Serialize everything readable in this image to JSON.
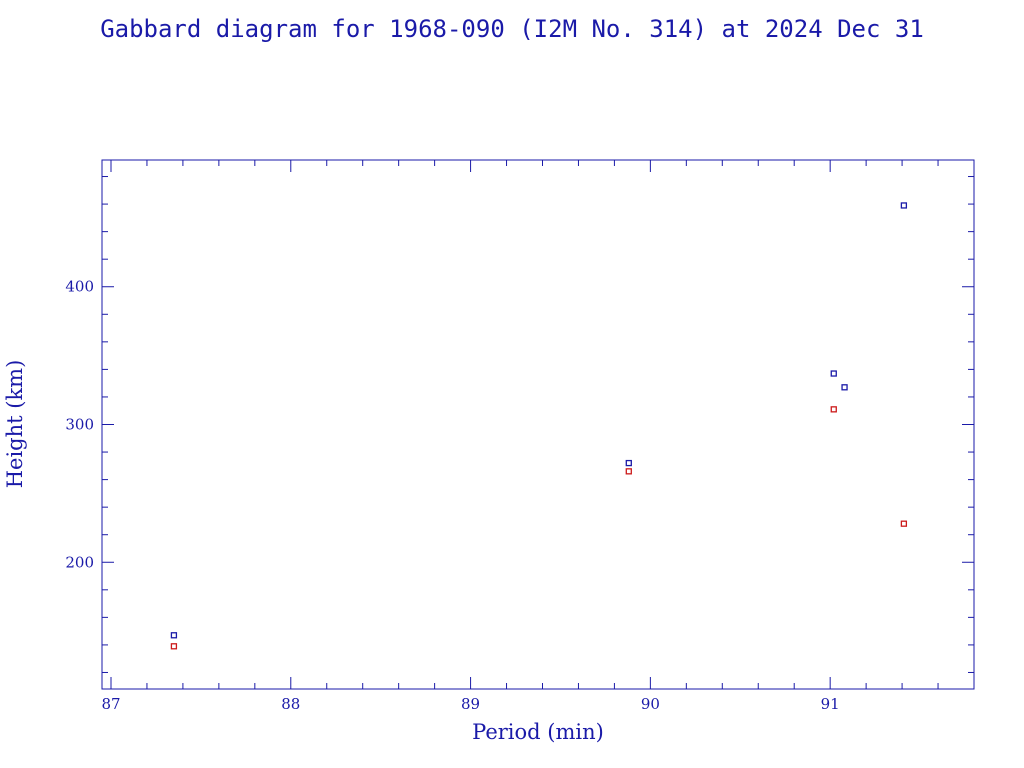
{
  "chart_data": {
    "type": "scatter",
    "title": "Gabbard diagram for 1968-090 (I2M No. 314) at 2024 Dec 31",
    "xlabel": "Period (min)",
    "ylabel": "Height (km)",
    "xlim": [
      86.95,
      91.8
    ],
    "ylim": [
      108,
      492
    ],
    "x_ticks": [
      87,
      88,
      89,
      90,
      91
    ],
    "y_ticks": [
      200,
      300,
      400
    ],
    "grid": false,
    "series": [
      {
        "color": "#1a1aa8",
        "points": [
          {
            "x": 87.35,
            "y": 147
          },
          {
            "x": 89.88,
            "y": 272
          },
          {
            "x": 91.02,
            "y": 337
          },
          {
            "x": 91.08,
            "y": 327
          },
          {
            "x": 91.41,
            "y": 459
          }
        ]
      },
      {
        "color": "#cc1a1a",
        "points": [
          {
            "x": 87.35,
            "y": 139
          },
          {
            "x": 89.88,
            "y": 266
          },
          {
            "x": 91.02,
            "y": 311
          },
          {
            "x": 91.41,
            "y": 228
          }
        ]
      }
    ],
    "axis_color": "#1a1aa8"
  }
}
